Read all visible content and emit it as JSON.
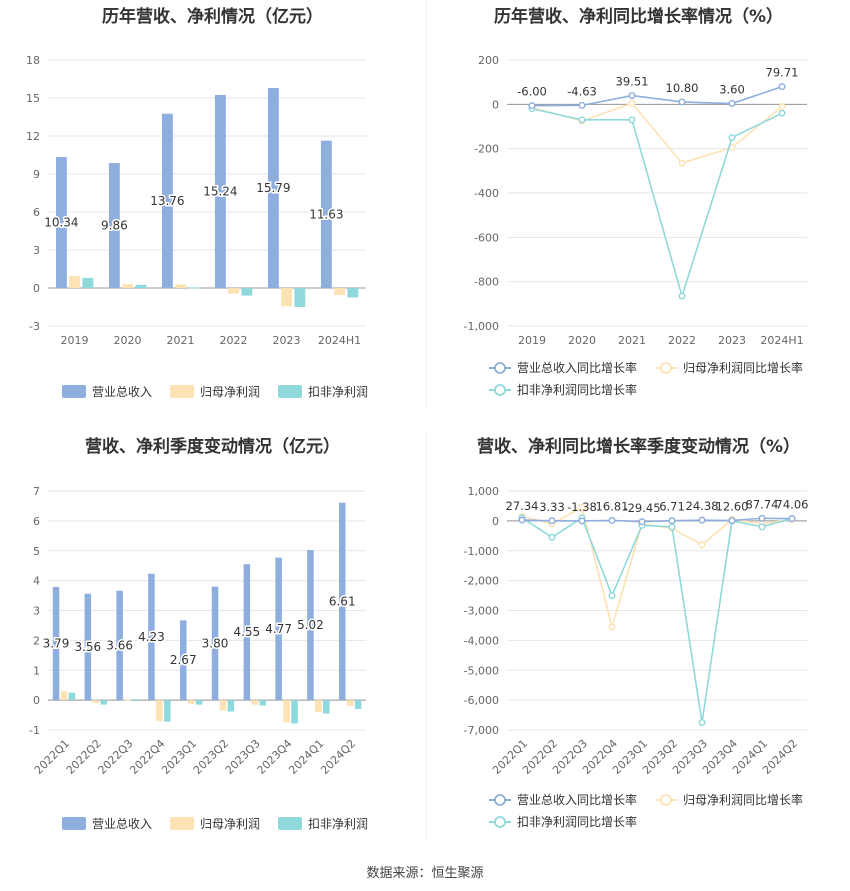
{
  "source": "数据来源：恒生聚源",
  "colors": {
    "revenue": "#8eaedd",
    "parent_net": "#fde2b3",
    "deducted_net": "#8fd8dc"
  },
  "chart_data": [
    {
      "id": "annual_amount",
      "type": "bar",
      "title": "历年营收、净利情况（亿元）",
      "categories": [
        "2019",
        "2020",
        "2021",
        "2022",
        "2023",
        "2024H1"
      ],
      "ylim": [
        -3,
        18
      ],
      "yticks": [
        -3,
        0,
        3,
        6,
        9,
        12,
        15,
        18
      ],
      "series": [
        {
          "name": "营业总收入",
          "values": [
            10.34,
            9.86,
            13.76,
            15.24,
            15.79,
            11.63
          ],
          "labels": [
            "10.34",
            "9.86",
            "13.76",
            "15.24",
            "15.79",
            "11.63"
          ]
        },
        {
          "name": "归母净利润",
          "values": [
            0.95,
            0.3,
            0.28,
            -0.45,
            -1.45,
            -0.55
          ]
        },
        {
          "name": "扣非净利润",
          "values": [
            0.8,
            0.25,
            0.05,
            -0.6,
            -1.5,
            -0.75
          ]
        }
      ],
      "legend": "bottom"
    },
    {
      "id": "annual_growth",
      "type": "line",
      "title": "历年营收、净利同比增长率情况（%）",
      "categories": [
        "2019",
        "2020",
        "2021",
        "2022",
        "2023",
        "2024H1"
      ],
      "ylim": [
        -1000,
        200
      ],
      "yticks": [
        -1000,
        -800,
        -600,
        -400,
        -200,
        0,
        200
      ],
      "ytick_labels": [
        "-1,000",
        "-800",
        "-600",
        "-400",
        "-200",
        "0",
        "200"
      ],
      "series": [
        {
          "name": "营业总收入同比增长率",
          "values": [
            -6.0,
            -4.63,
            39.51,
            10.8,
            3.6,
            79.71
          ],
          "labels": [
            "-6.00",
            "-4.63",
            "39.51",
            "10.80",
            "3.60",
            "79.71"
          ]
        },
        {
          "name": "归母净利润同比增长率",
          "values": [
            -15,
            -75,
            5,
            -265,
            -195,
            -10
          ]
        },
        {
          "name": "扣非净利润同比增长率",
          "values": [
            -20,
            -70,
            -70,
            -865,
            -150,
            -40
          ]
        }
      ],
      "legend": "bottom"
    },
    {
      "id": "quarterly_amount",
      "type": "bar",
      "title": "营收、净利季度变动情况（亿元）",
      "categories": [
        "2022Q1",
        "2022Q2",
        "2022Q3",
        "2022Q4",
        "2023Q1",
        "2023Q2",
        "2023Q3",
        "2023Q4",
        "2024Q1",
        "2024Q2"
      ],
      "ylim": [
        -1,
        7
      ],
      "yticks": [
        -1,
        0,
        1,
        2,
        3,
        4,
        5,
        6,
        7
      ],
      "series": [
        {
          "name": "营业总收入",
          "values": [
            3.79,
            3.56,
            3.66,
            4.23,
            2.67,
            3.8,
            4.55,
            4.77,
            5.02,
            6.61
          ],
          "labels": [
            "3.79",
            "3.56",
            "3.66",
            "4.23",
            "2.67",
            "3.80",
            "4.55",
            "4.77",
            "5.02",
            "6.61"
          ]
        },
        {
          "name": "归母净利润",
          "values": [
            0.3,
            -0.1,
            0.02,
            -0.7,
            -0.12,
            -0.35,
            -0.15,
            -0.75,
            -0.4,
            -0.2
          ]
        },
        {
          "name": "扣非净利润",
          "values": [
            0.25,
            -0.15,
            -0.02,
            -0.72,
            -0.15,
            -0.38,
            -0.18,
            -0.78,
            -0.45,
            -0.3
          ]
        }
      ],
      "legend": "bottom"
    },
    {
      "id": "quarterly_growth",
      "type": "line",
      "title": "营收、净利同比增长率季度变动情况（%）",
      "categories": [
        "2022Q1",
        "2022Q2",
        "2022Q3",
        "2022Q4",
        "2023Q1",
        "2023Q2",
        "2023Q3",
        "2023Q4",
        "2024Q1",
        "2024Q2"
      ],
      "ylim": [
        -7000,
        1000
      ],
      "yticks": [
        -7000,
        -6000,
        -5000,
        -4000,
        -3000,
        -2000,
        -1000,
        0,
        1000
      ],
      "ytick_labels": [
        "-7,000",
        "-6,000",
        "-5,000",
        "-4,000",
        "-3,000",
        "-2,000",
        "-1,000",
        "0",
        "1,000"
      ],
      "series": [
        {
          "name": "营业总收入同比增长率",
          "values": [
            27.34,
            3.33,
            -1.38,
            16.81,
            -29.45,
            6.71,
            24.38,
            12.6,
            87.74,
            74.06
          ],
          "labels": [
            "27.34",
            "3.33",
            "-1.38",
            "16.81",
            "-29.45",
            "6.71",
            "24.38",
            "12.60",
            "87.74",
            "74.06"
          ]
        },
        {
          "name": "归母净利润同比增长率",
          "values": [
            150,
            -100,
            450,
            -3550,
            -100,
            -250,
            -800,
            50,
            -100,
            50
          ]
        },
        {
          "name": "扣非净利润同比增长率",
          "values": [
            100,
            -550,
            100,
            -2500,
            -150,
            -200,
            -6750,
            0,
            -200,
            80
          ]
        }
      ],
      "legend": "bottom"
    }
  ]
}
